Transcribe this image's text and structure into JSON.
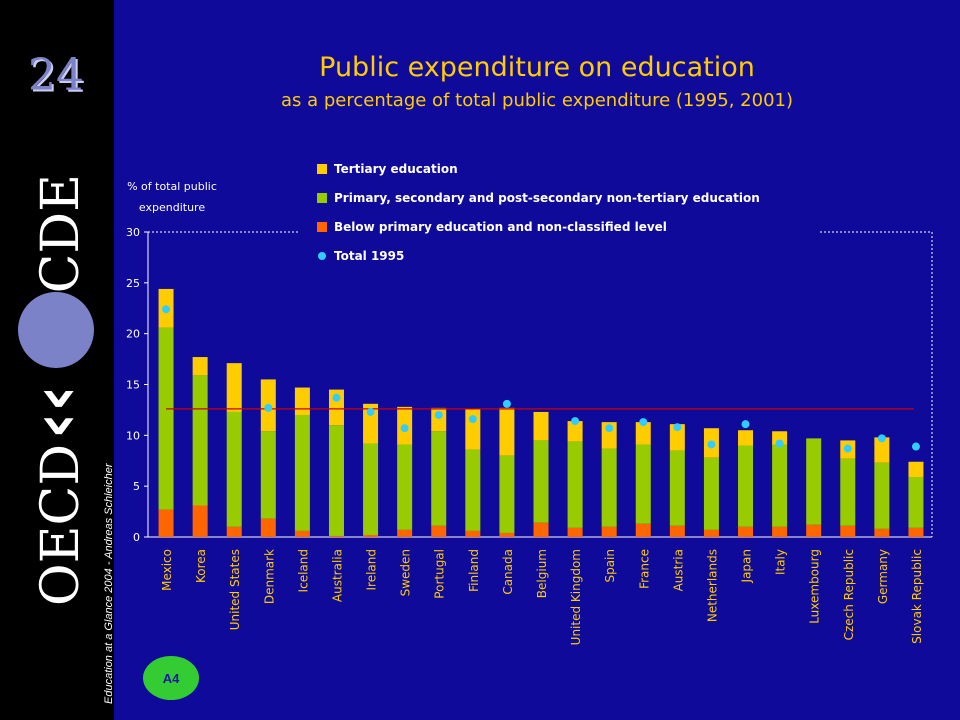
{
  "header": {
    "title": "Public expenditure on education",
    "subtitle": "as a percentage of total public expenditure (1995, 2001)"
  },
  "sidebar": {
    "page_number": "24",
    "brand_top": "OCDE",
    "brand_bottom": "OECD",
    "credit": "Education at a Glance 2004 - Andreas Schleicher",
    "badge": "A4"
  },
  "colors": {
    "background": "#0f0a9a",
    "tertiary": "#ffcc00",
    "primary_secondary": "#99cc00",
    "below_primary": "#ff6600",
    "total_1995": "#33ccff",
    "average_line": "#cc0000"
  },
  "chart_data": {
    "type": "bar",
    "stacked": true,
    "ylabel": "% of total public expenditure",
    "ylim": [
      0,
      30
    ],
    "yticks": [
      0,
      5,
      10,
      15,
      20,
      25,
      30
    ],
    "grid": false,
    "legend_position": "top",
    "categories": [
      "Mexico",
      "Korea",
      "United States",
      "Denmark",
      "Iceland",
      "Australia",
      "Ireland",
      "Sweden",
      "Portugal",
      "Finland",
      "Canada",
      "Belgium",
      "United Kingdom",
      "Spain",
      "France",
      "Austria",
      "Netherlands",
      "Japan",
      "Italy",
      "Luxembourg",
      "Czech Republic",
      "Germany",
      "Slovak Republic"
    ],
    "series": [
      {
        "name": "Below primary education and non-classified level",
        "values": [
          2.7,
          3.1,
          1.0,
          1.8,
          0.6,
          0.1,
          0.2,
          0.7,
          1.1,
          0.6,
          0.4,
          1.4,
          0.9,
          1.0,
          1.3,
          1.1,
          0.7,
          1.0,
          1.0,
          1.2,
          1.1,
          0.8,
          0.9
        ]
      },
      {
        "name": "Primary, secondary and post-secondary non-tertiary education",
        "values": [
          17.9,
          12.8,
          11.3,
          8.6,
          11.4,
          10.9,
          9.0,
          8.4,
          9.3,
          8.0,
          7.6,
          8.1,
          8.5,
          7.7,
          7.8,
          7.4,
          7.1,
          8.0,
          8.1,
          8.5,
          6.6,
          6.5,
          5.0
        ]
      },
      {
        "name": "Tertiary education",
        "values": [
          3.8,
          1.8,
          4.8,
          5.1,
          2.7,
          3.5,
          3.9,
          3.7,
          2.3,
          4.0,
          4.7,
          2.8,
          2.0,
          2.6,
          2.2,
          2.6,
          2.9,
          1.5,
          1.3,
          0.0,
          1.8,
          2.5,
          1.5
        ]
      }
    ],
    "total_1995": [
      22.4,
      null,
      null,
      12.7,
      null,
      13.7,
      12.3,
      10.7,
      12.0,
      11.6,
      13.1,
      null,
      11.4,
      10.7,
      11.3,
      10.8,
      9.1,
      11.1,
      9.2,
      null,
      8.7,
      9.7,
      8.9
    ],
    "average_line": 12.6
  }
}
